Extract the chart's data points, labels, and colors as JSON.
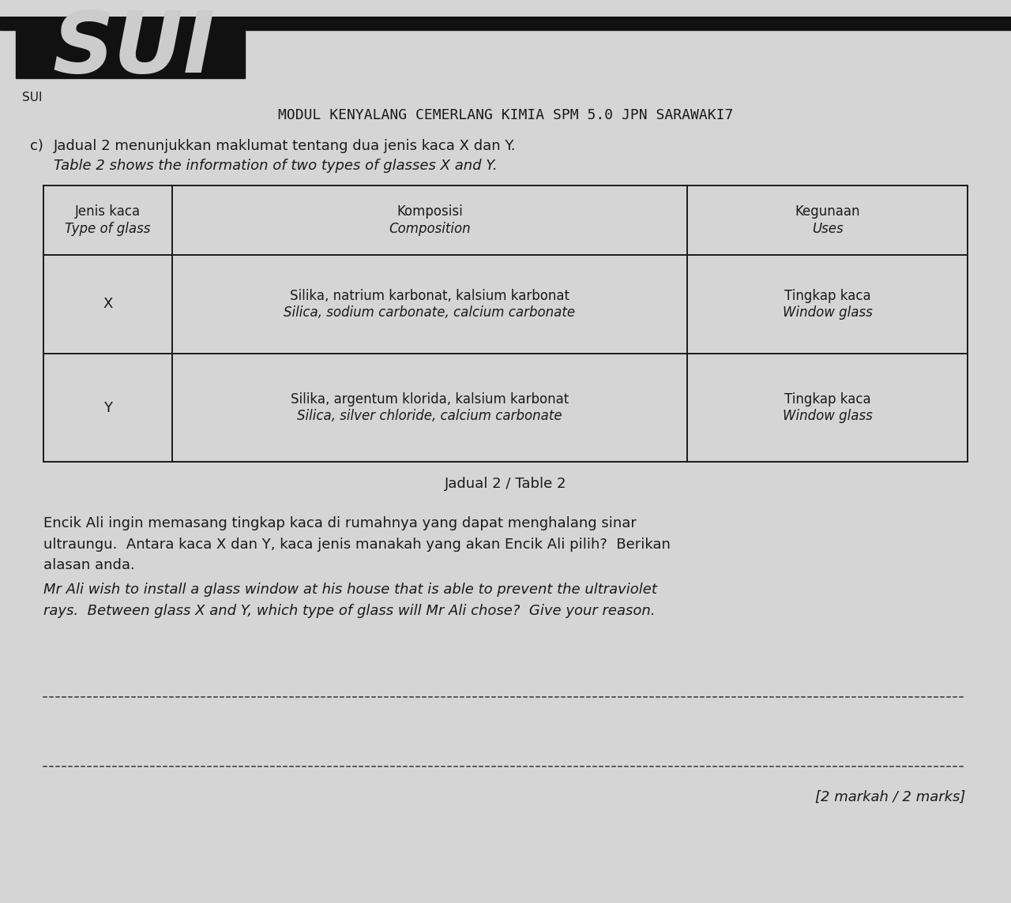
{
  "bg_color": "#d5d5d5",
  "header_text": "MODUL KENYALANG CEMERLANG KIMIA SPM 5.0 JPN SARAWAKI7",
  "sui_text": "SUI",
  "corner_text": "c)",
  "line1_malay": "Jadual 2 menunjukkan maklumat tentang dua jenis kaca X dan Y.",
  "line1_english": "Table 2 shows the information of two types of glasses X and Y.",
  "table_caption": "Jadual 2 / Table 2",
  "col1_header_line1": "Jenis kaca",
  "col1_header_line2": "Type of glass",
  "col2_header_line1": "Komposisi",
  "col2_header_line2": "Composition",
  "col3_header_line1": "Kegunaan",
  "col3_header_line2": "Uses",
  "row1_col1": "X",
  "row1_col2_line1": "Silika, natrium karbonat, kalsium karbonat",
  "row1_col2_line2": "Silica, sodium carbonate, calcium carbonate",
  "row1_col3_line1": "Tingkap kaca",
  "row1_col3_line2": "Window glass",
  "row2_col1": "Y",
  "row2_col2_line1": "Silika, argentum klorida, kalsium karbonat",
  "row2_col2_line2": "Silica, silver chloride, calcium carbonate",
  "row2_col3_line1": "Tingkap kaca",
  "row2_col3_line2": "Window glass",
  "para1_line1": "Encik Ali ingin memasang tingkap kaca di rumahnya yang dapat menghalang sinar",
  "para1_line2": "ultraungu.  Antara kaca X dan Y, kaca jenis manakah yang akan Encik Ali pilih?  Berikan",
  "para1_line3": "alasan anda.",
  "para2_line1": "Mr Ali wish to install a glass window at his house that is able to prevent the ultraviolet",
  "para2_line2": "rays.  Between glass X and Y, which type of glass will Mr Ali chose?  Give your reason.",
  "marks_text": "[2 markah / 2 marks]",
  "font_color": "#1a1a1a",
  "table_border_color": "#1a1a1a",
  "dotted_line_color": "#444444",
  "dark_banner_color": "#111111"
}
